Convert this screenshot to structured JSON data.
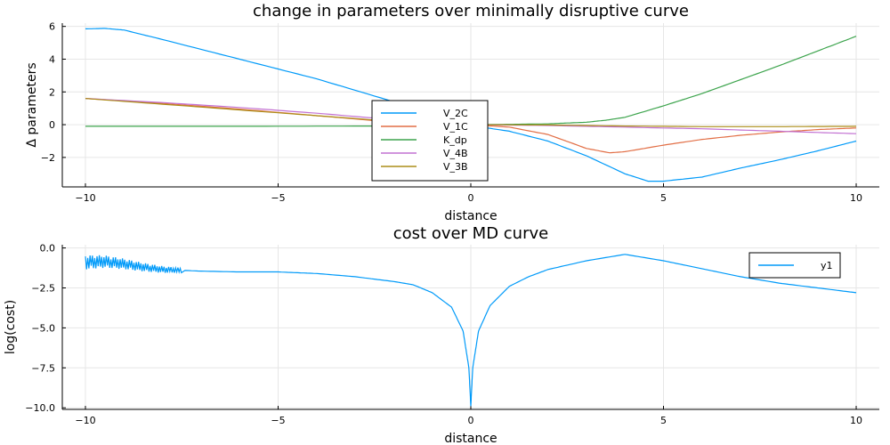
{
  "chart_data": [
    {
      "type": "line",
      "title": "change in parameters over minimally disruptive curve",
      "xlabel": "distance",
      "ylabel": "Δ parameters",
      "xlim": [
        -10.6,
        10.6
      ],
      "ylim": [
        -3.8,
        6.2
      ],
      "xticks": [
        -10,
        -5,
        0,
        5,
        10
      ],
      "xtick_labels": [
        "−10",
        "−5",
        "0",
        "5",
        "10"
      ],
      "yticks": [
        -2,
        0,
        2,
        4,
        6
      ],
      "ytick_labels": [
        "−2",
        "0",
        "2",
        "4",
        "6"
      ],
      "grid": true,
      "legend": "center",
      "series": [
        {
          "name": "V_2C",
          "color": "#009af9",
          "x": [
            -10,
            -9.5,
            -9,
            -8,
            -6,
            -4,
            -2,
            -1,
            0,
            1,
            2,
            3,
            4,
            4.6,
            5,
            6,
            7,
            8,
            9,
            10
          ],
          "y": [
            5.85,
            5.88,
            5.78,
            5.2,
            4.0,
            2.8,
            1.4,
            0.75,
            -0.05,
            -0.4,
            -1.0,
            -1.9,
            -3.0,
            -3.45,
            -3.45,
            -3.2,
            -2.65,
            -2.15,
            -1.6,
            -1.0
          ]
        },
        {
          "name": "V_1C",
          "color": "#e26f46",
          "x": [
            -10,
            -8,
            -6,
            -4,
            -2,
            -1,
            0,
            1,
            2,
            3,
            3.6,
            4,
            5,
            6,
            7,
            8,
            9,
            10
          ],
          "y": [
            1.6,
            1.3,
            0.95,
            0.55,
            0.15,
            0.02,
            0.0,
            -0.15,
            -0.6,
            -1.45,
            -1.72,
            -1.65,
            -1.25,
            -0.9,
            -0.65,
            -0.45,
            -0.3,
            -0.2
          ]
        },
        {
          "name": "K_dp",
          "color": "#3da44d",
          "x": [
            -10,
            -6,
            -2,
            0,
            1,
            2,
            3,
            3.5,
            4,
            5,
            6,
            7,
            8,
            9,
            10
          ],
          "y": [
            -0.1,
            -0.1,
            -0.08,
            0.0,
            0.02,
            0.05,
            0.15,
            0.27,
            0.45,
            1.15,
            1.9,
            2.75,
            3.6,
            4.5,
            5.4
          ]
        },
        {
          "name": "V_4B",
          "color": "#c271d2",
          "x": [
            -10,
            -8,
            -6,
            -4,
            -2,
            0,
            2,
            4,
            6,
            8,
            10
          ],
          "y": [
            1.6,
            1.35,
            1.05,
            0.7,
            0.3,
            0.0,
            -0.05,
            -0.15,
            -0.25,
            -0.4,
            -0.55
          ]
        },
        {
          "name": "V_3B",
          "color": "#ac8d18",
          "x": [
            -10,
            -8,
            -6,
            -4,
            -2,
            0,
            2,
            4,
            6,
            8,
            10
          ],
          "y": [
            1.6,
            1.25,
            0.9,
            0.55,
            0.2,
            0.0,
            -0.02,
            -0.08,
            -0.12,
            -0.12,
            -0.1
          ]
        }
      ]
    },
    {
      "type": "line",
      "title": "cost over MD curve",
      "xlabel": "distance",
      "ylabel": "log(cost)",
      "xlim": [
        -10.6,
        10.6
      ],
      "ylim": [
        -10.1,
        0.2
      ],
      "xticks": [
        -10,
        -5,
        0,
        5,
        10
      ],
      "xtick_labels": [
        "−10",
        "−5",
        "0",
        "5",
        "10"
      ],
      "yticks": [
        -10,
        -7.5,
        -5,
        -2.5,
        0
      ],
      "ytick_labels": [
        "−10.0",
        "−7.5",
        "−5.0",
        "−2.5",
        "0.0"
      ],
      "grid": true,
      "legend": "top-right",
      "series": [
        {
          "name": "y1",
          "color": "#009af9",
          "x": [
            -10,
            -9.5,
            -9,
            -8.5,
            -8,
            -7,
            -6,
            -5,
            -4,
            -3,
            -2,
            -1.5,
            -1,
            -0.5,
            -0.2,
            -0.05,
            0,
            0.05,
            0.2,
            0.5,
            1,
            1.5,
            2,
            3,
            4,
            5,
            6,
            7,
            8,
            9,
            10
          ],
          "y": [
            -0.9,
            -0.85,
            -1.0,
            -1.2,
            -1.35,
            -1.45,
            -1.5,
            -1.5,
            -1.6,
            -1.8,
            -2.1,
            -2.3,
            -2.8,
            -3.7,
            -5.2,
            -7.5,
            -9.9,
            -7.5,
            -5.2,
            -3.6,
            -2.4,
            -1.8,
            -1.35,
            -0.8,
            -0.4,
            -0.8,
            -1.3,
            -1.8,
            -2.2,
            -2.5,
            -2.8
          ],
          "noise_region_x": [
            -10,
            -7.5
          ],
          "noise_amplitude": [
            0.45,
            0.15
          ]
        }
      ]
    }
  ]
}
